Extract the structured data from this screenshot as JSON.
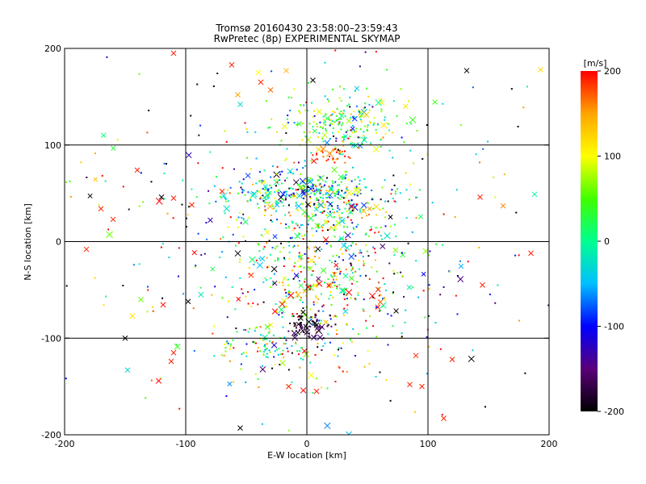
{
  "chart_data": {
    "type": "scatter",
    "title": "Tromsø 20160430 23:58:00–23:59:43",
    "subtitle": "RwPretec (8p) EXPERIMENTAL SKYMAP",
    "xlabel": "E-W location [km]",
    "ylabel": "N-S location [km]",
    "xlim": [
      -200,
      200
    ],
    "ylim": [
      -200,
      200
    ],
    "x_ticks": [
      "-200",
      "-100",
      "0",
      "100",
      "200"
    ],
    "y_ticks": [
      "-200",
      "-100",
      "0",
      "100",
      "200"
    ],
    "grid": true,
    "colorbar": {
      "label": "[m/s]",
      "range": [
        -200,
        200
      ],
      "ticks": [
        "200",
        "100",
        "0",
        "-100",
        "-200"
      ],
      "colormap": [
        "#000000",
        "#5a007a",
        "#0000ff",
        "#00bfff",
        "#00ff90",
        "#40ff00",
        "#ffff00",
        "#ffa500",
        "#ff0000"
      ]
    },
    "clusters": [
      {
        "x": 30,
        "y": 125,
        "sx": 22,
        "sy": 14,
        "n": 220,
        "v": 40,
        "vs": 70
      },
      {
        "x": -5,
        "y": 50,
        "sx": 30,
        "sy": 12,
        "n": 260,
        "v": -40,
        "vs": 90
      },
      {
        "x": 25,
        "y": 30,
        "sx": 30,
        "sy": 25,
        "n": 200,
        "v": 60,
        "vs": 90
      },
      {
        "x": 5,
        "y": -40,
        "sx": 40,
        "sy": 45,
        "n": 380,
        "v": 60,
        "vs": 130
      },
      {
        "x": 20,
        "y": 90,
        "sx": 8,
        "sy": 6,
        "n": 40,
        "v": 180,
        "vs": 20
      },
      {
        "x": -30,
        "y": -110,
        "sx": 20,
        "sy": 10,
        "n": 90,
        "v": 20,
        "vs": 100
      },
      {
        "x": 0,
        "y": -85,
        "sx": 10,
        "sy": 8,
        "n": 60,
        "v": -180,
        "vs": 20
      },
      {
        "x": 0,
        "y": 0,
        "sx": 110,
        "sy": 100,
        "n": 420,
        "v": 0,
        "vs": 160
      }
    ],
    "crosses": [
      {
        "x": -110,
        "y": 195,
        "v": 190
      },
      {
        "x": -62,
        "y": 183,
        "v": 190
      },
      {
        "x": -40,
        "y": 175,
        "v": 100
      },
      {
        "x": -17,
        "y": 177,
        "v": 140
      },
      {
        "x": 5,
        "y": 167,
        "v": -200
      },
      {
        "x": -38,
        "y": 165,
        "v": 190
      },
      {
        "x": 132,
        "y": 177,
        "v": -200
      },
      {
        "x": 193,
        "y": 178,
        "v": 120
      },
      {
        "x": -57,
        "y": 152,
        "v": 150
      },
      {
        "x": -30,
        "y": 157,
        "v": 170
      },
      {
        "x": -55,
        "y": 142,
        "v": -30
      },
      {
        "x": -140,
        "y": 74,
        "v": 190
      },
      {
        "x": -120,
        "y": 46,
        "v": -200
      },
      {
        "x": -110,
        "y": 45,
        "v": 190
      },
      {
        "x": -170,
        "y": 34,
        "v": 190
      },
      {
        "x": -160,
        "y": 23,
        "v": 190
      },
      {
        "x": -182,
        "y": -8,
        "v": 190
      },
      {
        "x": -95,
        "y": 38,
        "v": 190
      },
      {
        "x": -70,
        "y": 52,
        "v": 190
      },
      {
        "x": 143,
        "y": 46,
        "v": 190
      },
      {
        "x": 188,
        "y": 49,
        "v": -10
      },
      {
        "x": 162,
        "y": 37,
        "v": 160
      },
      {
        "x": -150,
        "y": -100,
        "v": -200
      },
      {
        "x": -148,
        "y": -133,
        "v": -30
      },
      {
        "x": -112,
        "y": -124,
        "v": 190
      },
      {
        "x": -137,
        "y": -60,
        "v": 60
      },
      {
        "x": -98,
        "y": -62,
        "v": -200
      },
      {
        "x": -110,
        "y": -115,
        "v": 190
      },
      {
        "x": -55,
        "y": -193,
        "v": -200
      },
      {
        "x": -15,
        "y": -150,
        "v": 190
      },
      {
        "x": 8,
        "y": -155,
        "v": 190
      },
      {
        "x": 85,
        "y": -148,
        "v": 190
      },
      {
        "x": 95,
        "y": -150,
        "v": 190
      },
      {
        "x": 113,
        "y": -183,
        "v": 190
      },
      {
        "x": 120,
        "y": -122,
        "v": 190
      },
      {
        "x": 90,
        "y": -118,
        "v": 190
      },
      {
        "x": 185,
        "y": -12,
        "v": 190
      },
      {
        "x": 145,
        "y": -45,
        "v": 190
      }
    ]
  }
}
